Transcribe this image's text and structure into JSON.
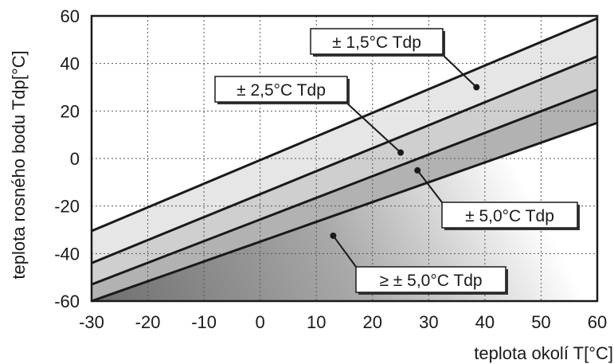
{
  "chart_data": {
    "type": "line",
    "xlabel": "teplota okolí  T[°C]",
    "ylabel": "teplota rosného bodu  Tdp[°C]",
    "xlim": [
      -30,
      60
    ],
    "ylim": [
      -60,
      60
    ],
    "xticks": [
      "-30",
      "-20",
      "-10",
      "0",
      "10",
      "20",
      "30",
      "40",
      "50",
      "60"
    ],
    "yticks": [
      "60",
      "40",
      "20",
      "0",
      "-20",
      "-40",
      "-60"
    ],
    "grid": true,
    "lines": [
      {
        "x": [
          -30,
          60
        ],
        "y": [
          -30.5,
          59
        ]
      },
      {
        "x": [
          -30,
          60
        ],
        "y": [
          -44,
          43
        ]
      },
      {
        "x": [
          -30,
          60
        ],
        "y": [
          -53,
          29
        ]
      },
      {
        "x": [
          -30,
          60
        ],
        "y": [
          -60,
          15
        ]
      }
    ],
    "regions": [
      {
        "label": "± 1,5°C Tdp",
        "color": "#e6e6e6"
      },
      {
        "label": "± 2,5°C Tdp",
        "color": "#cfcfcf"
      },
      {
        "label": "± 5,0°C Tdp",
        "color": "#b2b2b2"
      },
      {
        "label": "≥ ± 5,0°C Tdp",
        "color": "#7a7a7a"
      }
    ],
    "annotations": [
      {
        "text": "± 1,5°C Tdp",
        "point": [
          38.5,
          30
        ]
      },
      {
        "text": "± 2,5°C Tdp",
        "point": [
          25,
          2.5
        ]
      },
      {
        "text": "± 5,0°C Tdp",
        "point": [
          28,
          -5
        ]
      },
      {
        "text": "≥ ± 5,0°C Tdp",
        "point": [
          13,
          -32.5
        ]
      }
    ]
  }
}
